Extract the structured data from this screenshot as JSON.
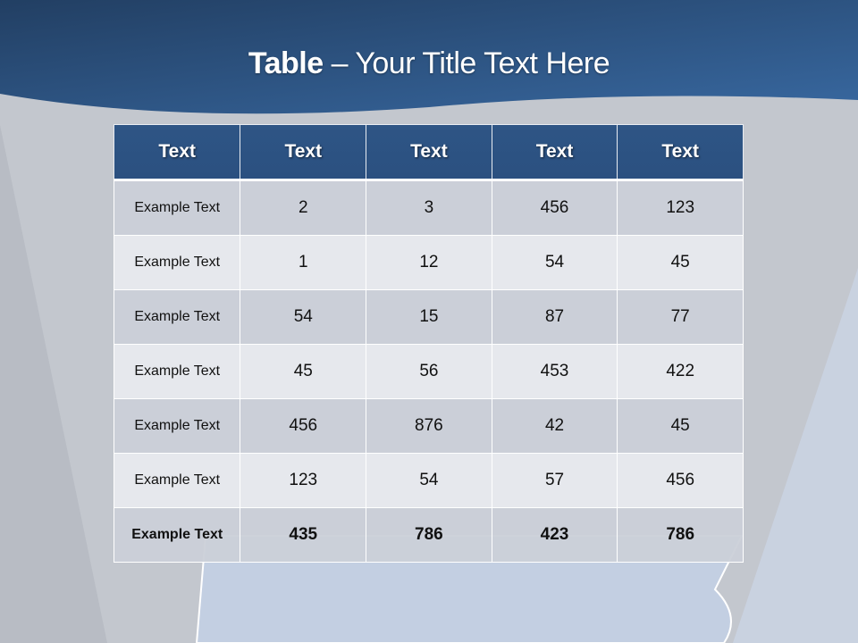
{
  "slide": {
    "title_bold": "Table",
    "title_rest": " – Your Title Text Here"
  },
  "colors": {
    "header_band": "#2a4e7c",
    "table_header": "#2d5383",
    "row_dark": "#cbd0d8",
    "row_light": "#e8eaee"
  },
  "table": {
    "headers": [
      "Text",
      "Text",
      "Text",
      "Text",
      "Text"
    ],
    "rows": [
      [
        "Example Text",
        "2",
        "3",
        "456",
        "123"
      ],
      [
        "Example Text",
        "1",
        "12",
        "54",
        "45"
      ],
      [
        "Example Text",
        "54",
        "15",
        "87",
        "77"
      ],
      [
        "Example Text",
        "45",
        "56",
        "453",
        "422"
      ],
      [
        "Example Text",
        "456",
        "876",
        "42",
        "45"
      ],
      [
        "Example Text",
        "123",
        "54",
        "57",
        "456"
      ],
      [
        "Example Text",
        "435",
        "786",
        "423",
        "786"
      ]
    ]
  }
}
